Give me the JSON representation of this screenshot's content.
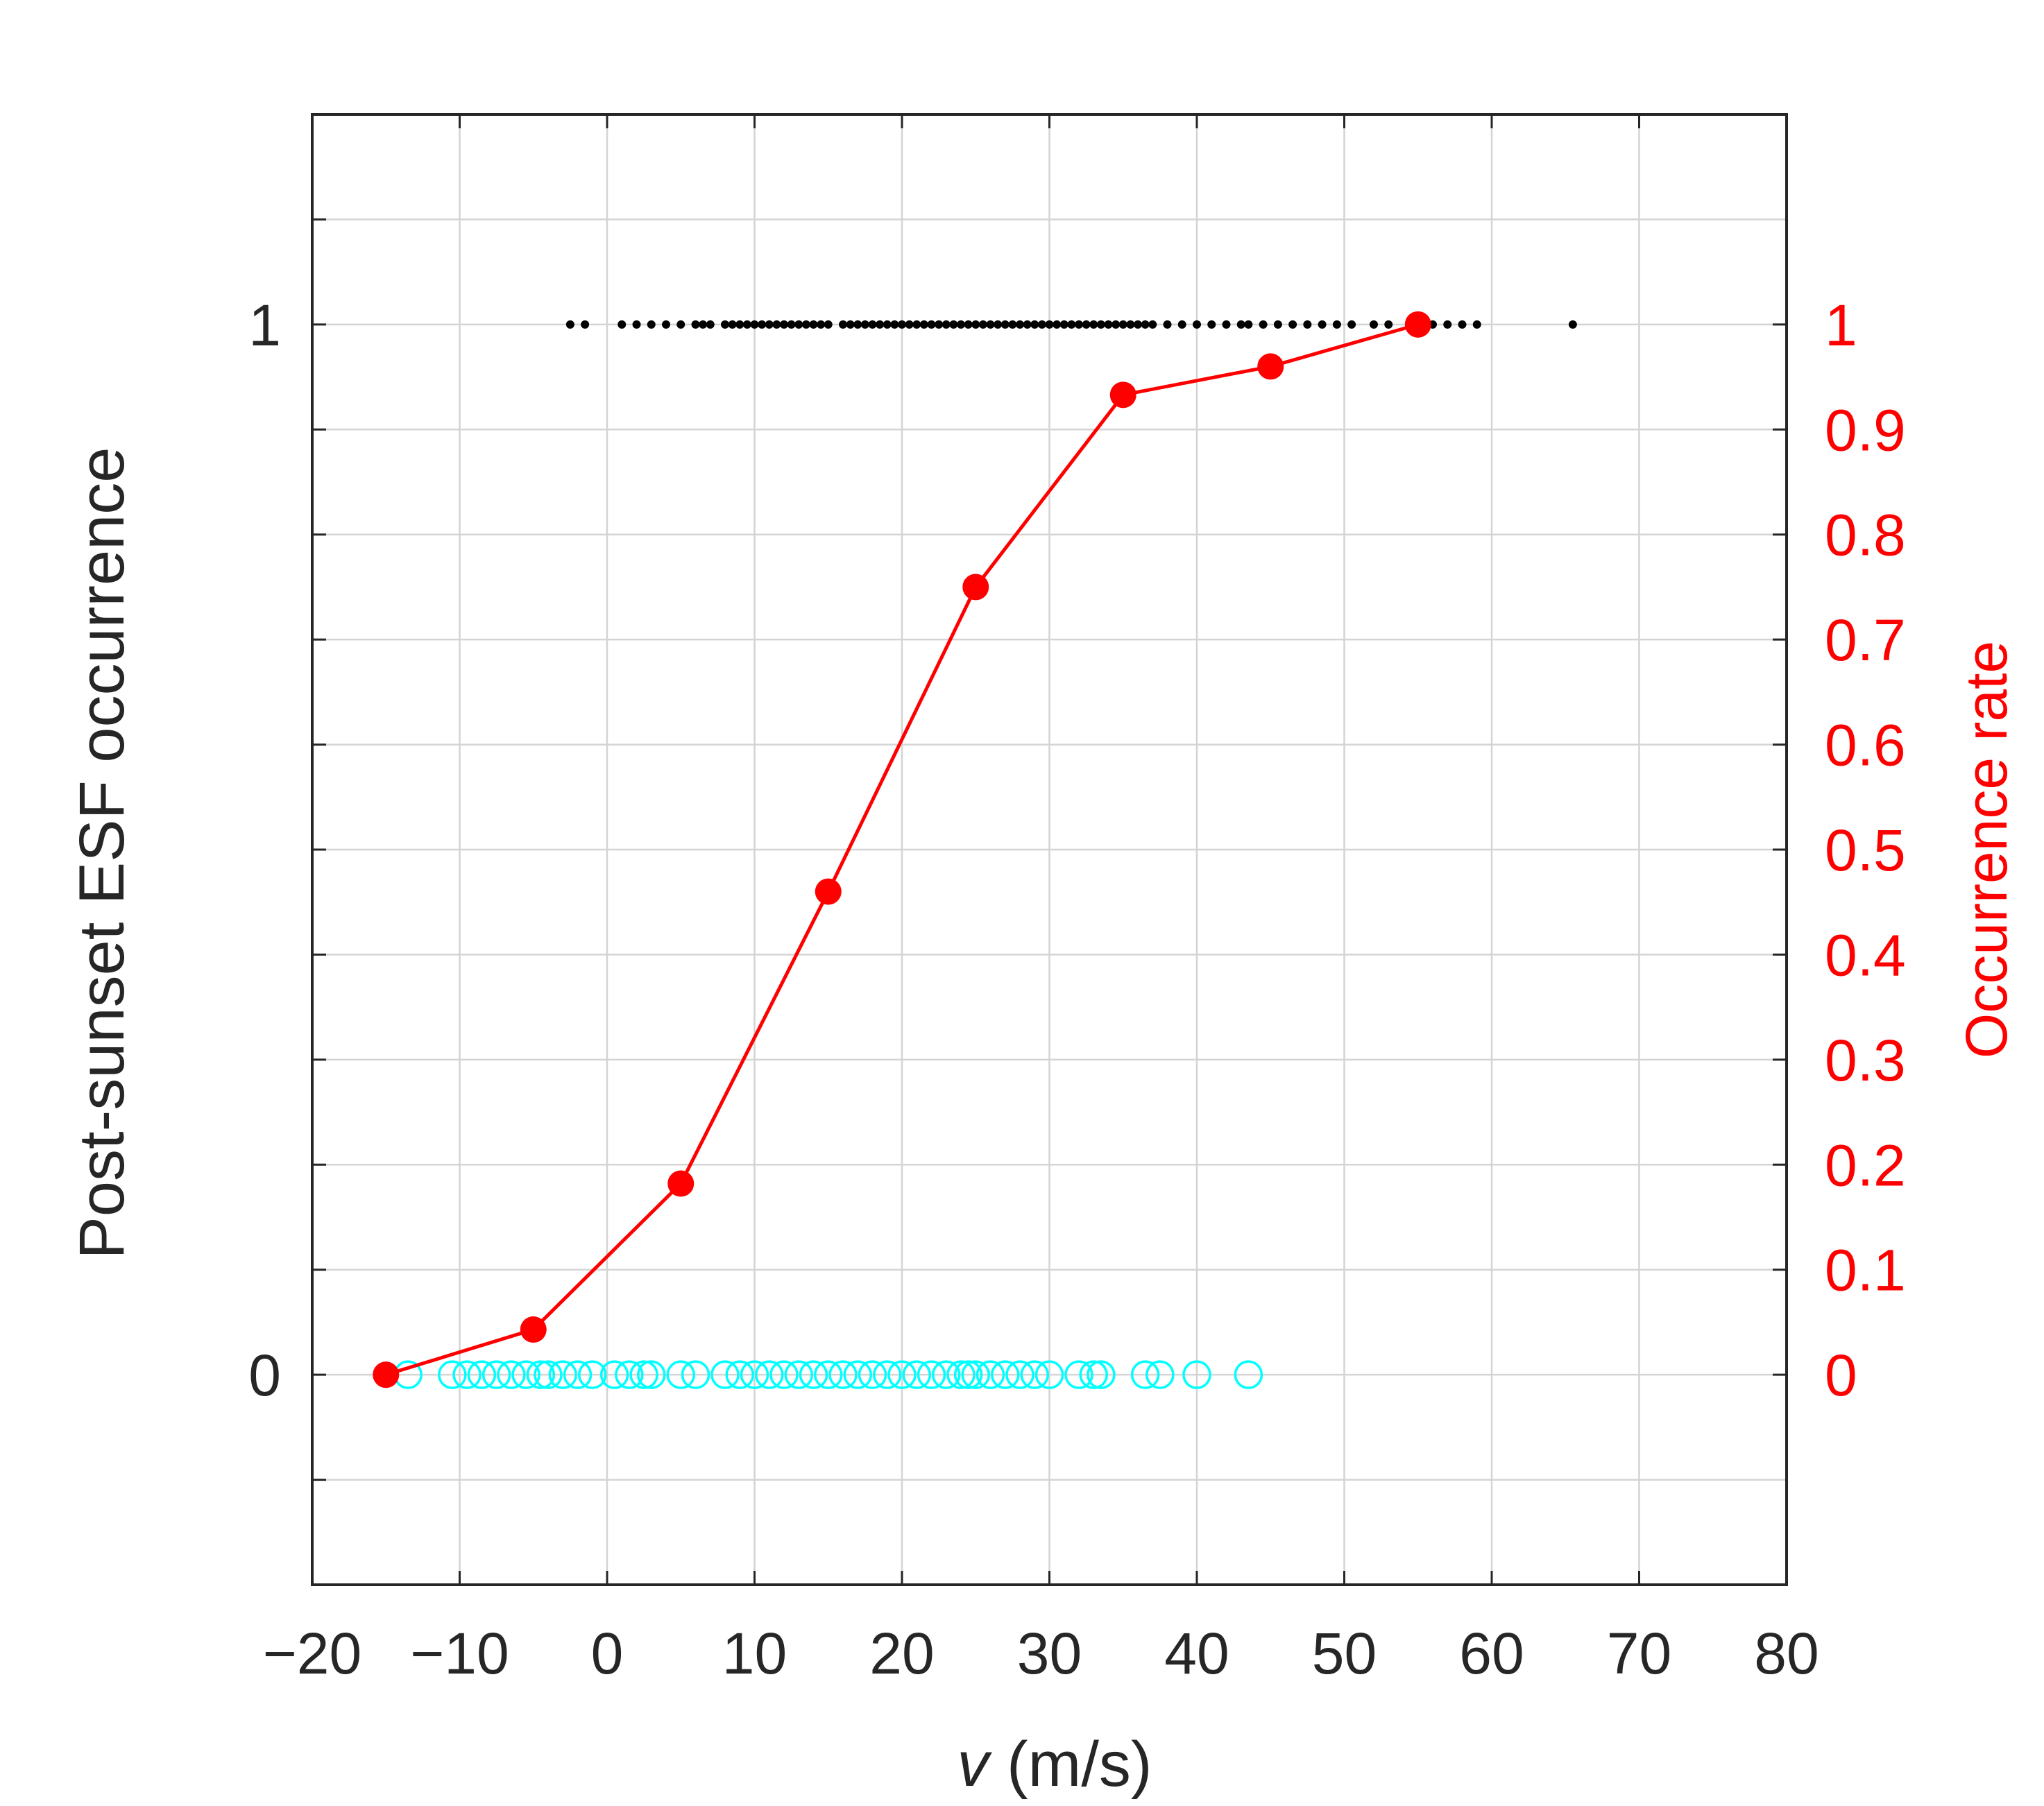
{
  "chart_data": {
    "type": "scatter",
    "title": "",
    "xlabel_var": "v",
    "xlabel_unit": " (m/s)",
    "ylabel": "Post-sunset ESF occurrence",
    "y2label": "Occurrence rate",
    "xlim": [
      -20,
      80
    ],
    "ylim": [
      -0.2,
      1.2
    ],
    "y2lim": [
      -0.2,
      1.2
    ],
    "x_ticks": [
      -20,
      -10,
      0,
      10,
      20,
      30,
      40,
      50,
      60,
      70,
      80
    ],
    "x_tick_labels": [
      "−20",
      "−10",
      "0",
      "10",
      "20",
      "30",
      "40",
      "50",
      "60",
      "70",
      "80"
    ],
    "y_ticks": [
      0,
      1
    ],
    "y_tick_labels": [
      "0",
      "1"
    ],
    "y_minor_ticks": [
      -0.1,
      0.1,
      0.2,
      0.3,
      0.4,
      0.5,
      0.6,
      0.7,
      0.8,
      0.9,
      1.1
    ],
    "y2_ticks": [
      0,
      0.1,
      0.2,
      0.3,
      0.4,
      0.5,
      0.6,
      0.7,
      0.8,
      0.9,
      1
    ],
    "y2_tick_labels": [
      "0",
      "0.1",
      "0.2",
      "0.3",
      "0.4",
      "0.5",
      "0.6",
      "0.7",
      "0.8",
      "0.9",
      "1"
    ],
    "grid": true,
    "series": [
      {
        "kind": "scatter-dot",
        "color": "#000000",
        "y": 1,
        "x": [
          -2.5,
          -1.5,
          1,
          2,
          3,
          4,
          5,
          6,
          6.5,
          7,
          8,
          8.5,
          9,
          9.5,
          10,
          10.5,
          11,
          11.5,
          12,
          12.5,
          13,
          13.5,
          14,
          14.5,
          15,
          16,
          16.5,
          17,
          17.5,
          18,
          18.5,
          19,
          19.5,
          20,
          20.5,
          21,
          21.5,
          22,
          22.5,
          23,
          23.5,
          24,
          24.5,
          25,
          25.5,
          26,
          26.5,
          27,
          27.5,
          28,
          28.5,
          29,
          29.5,
          30,
          30.5,
          31,
          31.5,
          32,
          32.5,
          33,
          33.5,
          34,
          34.5,
          35,
          35.5,
          36,
          36.5,
          37,
          38,
          39,
          40,
          41,
          42,
          43,
          43.5,
          44.5,
          45.5,
          46.5,
          47.5,
          48.5,
          49.5,
          50.5,
          52,
          53,
          55,
          56,
          57,
          58,
          59,
          65.5
        ]
      },
      {
        "kind": "scatter-circle",
        "color": "#00ffff",
        "y": 0,
        "x": [
          -13.5,
          -10.5,
          -9.5,
          -8.5,
          -7.5,
          -6.5,
          -5.5,
          -4.5,
          -4,
          -3,
          -2,
          -1,
          0.5,
          1.5,
          2.5,
          3,
          5,
          6,
          8,
          9,
          10,
          11,
          12,
          13,
          14,
          15,
          16,
          17,
          18,
          19,
          20,
          21,
          22,
          23,
          24,
          24.5,
          25,
          26,
          27,
          28,
          29,
          30,
          32,
          33,
          33.5,
          36.5,
          37.5,
          40,
          43.5
        ]
      },
      {
        "kind": "line-marker",
        "color": "#ff0000",
        "axis": "right",
        "x": [
          -15,
          -5,
          5,
          15,
          25,
          35,
          45,
          55
        ],
        "y": [
          0,
          0.043,
          0.182,
          0.46,
          0.75,
          0.933,
          0.96,
          1
        ]
      }
    ]
  }
}
